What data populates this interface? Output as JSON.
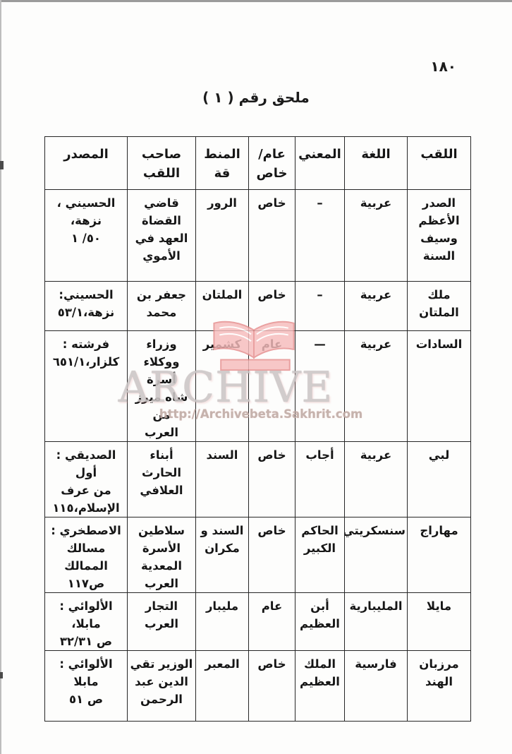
{
  "page": {
    "number": "١٨٠",
    "title": "ملحق رقم ( ١ )"
  },
  "watermark": {
    "logo_icon": "open-book-icon",
    "brand": "ARCHIVE",
    "url": "http://Archivebeta.Sakhrit.com",
    "book_fill": "#f6bcbc",
    "book_edge": "#e58c8c",
    "brand_color": "#ccc6c6",
    "url_color": "#c0aba5"
  },
  "table": {
    "direction": "rtl",
    "headers": [
      [
        "اللقب"
      ],
      [
        "اللغة"
      ],
      [
        "المعني"
      ],
      [
        "عام/",
        "خاص"
      ],
      [
        "المنط",
        "قة"
      ],
      [
        "صاحب",
        "اللقب"
      ],
      [
        "المصدر"
      ]
    ],
    "rows": [
      [
        [
          "الصدر",
          "الأعظم",
          "وسيف",
          "السنة"
        ],
        [
          "عربية"
        ],
        [
          "–"
        ],
        [
          "خاص"
        ],
        [
          "الرور"
        ],
        [
          "قاضي القضاة",
          "العهد في",
          "الأموي"
        ],
        [
          "الحسيني ، نزهة،",
          "⁦٥٠/ ١⁩"
        ]
      ],
      [
        [
          "ملك",
          "الملتان"
        ],
        [
          "عربية"
        ],
        [
          "–"
        ],
        [
          "خاص"
        ],
        [
          "الملتان"
        ],
        [
          "جعفر بن",
          "محمد"
        ],
        [
          "الحسيني:",
          "نزهة،⁦٥٣/١⁩"
        ]
      ],
      [
        [
          "السادات"
        ],
        [
          "عربية"
        ],
        [
          "—"
        ],
        [
          "عام"
        ],
        [
          "كشمير"
        ],
        [
          "وزراء",
          "ووكلاء أسرة",
          "شاه ميرز من",
          "العرب"
        ],
        [
          "فرشته :",
          "كلزار،⁦٦٥١/١⁩"
        ]
      ],
      [
        [
          "لبي"
        ],
        [
          "عربية"
        ],
        [
          "أجاب"
        ],
        [
          "خاص"
        ],
        [
          "السند"
        ],
        [
          "أبناء الحارث",
          "العلافي"
        ],
        [
          "الصديقي : أول",
          "من عرف",
          "الإسلام،١١٥"
        ]
      ],
      [
        [
          "مهاراج"
        ],
        [
          "سنسكريتي"
        ],
        [
          "الحاكم",
          "الكبير"
        ],
        [
          "خاص"
        ],
        [
          "السند و",
          "مكران"
        ],
        [
          "سلاطين",
          "الأسرة المعدية",
          "العرب"
        ],
        [
          "الاصطخري :",
          "مسالك الممالك",
          "ص١١٧"
        ]
      ],
      [
        [
          "مايلا"
        ],
        [
          "المليبارية"
        ],
        [
          "أبن",
          "العظيم"
        ],
        [
          "عام"
        ],
        [
          "مليبار"
        ],
        [
          "التجار العرب"
        ],
        [
          "الألوائي : مابلا،",
          "ص ⁦٣٢/٣١⁩"
        ]
      ],
      [
        [
          "مرزبان",
          "الهند"
        ],
        [
          "فارسية"
        ],
        [
          "الملك",
          "العظيم"
        ],
        [
          "خاص"
        ],
        [
          "المعبر"
        ],
        [
          "الوزير تقي",
          "الدين عبد",
          "الرحمن"
        ],
        [
          "الألوائي : مابلا",
          "ص ٥١"
        ]
      ]
    ]
  }
}
